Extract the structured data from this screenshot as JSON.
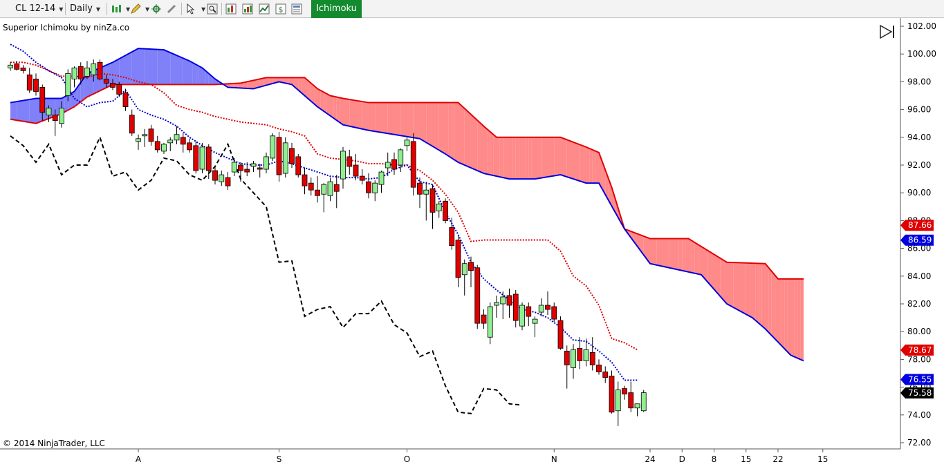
{
  "toolbar": {
    "instrument": "CL 12-14",
    "interval": "Daily",
    "indicator_tab": "Ichimoku",
    "icons": [
      "bar-style-icon",
      "pencil-icon",
      "crosshair-icon",
      "link-icon",
      "cursor-icon",
      "zoom-icon",
      "indicators-icon",
      "strategies-icon",
      "chart-trader-icon",
      "properties-icon"
    ]
  },
  "indicator_title": "Superior Ichimoku by ninZa.co",
  "copyright": "© 2014 NinjaTrader, LLC",
  "colors": {
    "up_candle": "#90EE90",
    "down_candle": "#E00000",
    "tenkan": "#0000CC",
    "kijun": "#E00000",
    "chikou": "#000000",
    "senkou_a": "#E00000",
    "senkou_b": "#0000E0",
    "kumo_bull": "#8080F8",
    "kumo_bear": "#FF8A8A"
  },
  "chart_data": {
    "type": "candlestick",
    "y_axis": {
      "min": 72,
      "max": 102,
      "ticks": [
        "102.00",
        "100.00",
        "98.00",
        "96.00",
        "94.00",
        "92.00",
        "90.00",
        "88.00",
        "86.00",
        "84.00",
        "82.00",
        "80.00",
        "78.00",
        "76.00",
        "74.00",
        "72.00"
      ]
    },
    "x_axis_labels": [
      {
        "label": "A",
        "index": 20
      },
      {
        "label": "S",
        "index": 42
      },
      {
        "label": "O",
        "index": 62
      },
      {
        "label": "N",
        "index": 85
      },
      {
        "label": "24",
        "index": 100
      },
      {
        "label": "D",
        "index": 105
      },
      {
        "label": "8",
        "index": 110
      },
      {
        "label": "15",
        "index": 115
      },
      {
        "label": "22",
        "index": 120
      },
      {
        "label": "15",
        "index": 127
      }
    ],
    "candles": [
      [
        99.0,
        99.4,
        98.8,
        99.2
      ],
      [
        99.3,
        99.5,
        98.8,
        98.9
      ],
      [
        99.0,
        99.2,
        98.6,
        98.8
      ],
      [
        98.5,
        99.0,
        97.2,
        97.4
      ],
      [
        98.2,
        98.6,
        97.0,
        97.3
      ],
      [
        97.6,
        97.8,
        95.2,
        95.8
      ],
      [
        95.6,
        96.3,
        95.1,
        96.1
      ],
      [
        95.6,
        96.0,
        94.1,
        95.2
      ],
      [
        95.0,
        96.6,
        94.7,
        96.1
      ],
      [
        97.0,
        98.9,
        96.6,
        98.6
      ],
      [
        98.2,
        99.1,
        97.6,
        99.0
      ],
      [
        99.1,
        99.4,
        97.8,
        98.2
      ],
      [
        98.4,
        99.5,
        98.2,
        99.0
      ],
      [
        98.5,
        99.6,
        98.0,
        99.3
      ],
      [
        99.4,
        99.6,
        98.1,
        98.2
      ],
      [
        98.2,
        98.5,
        97.6,
        97.9
      ],
      [
        97.9,
        98.2,
        97.4,
        97.6
      ],
      [
        97.8,
        98.0,
        96.9,
        97.1
      ],
      [
        97.2,
        97.5,
        95.9,
        96.2
      ],
      [
        95.6,
        96.0,
        94.1,
        94.3
      ],
      [
        93.7,
        94.2,
        93.1,
        93.9
      ],
      [
        94.1,
        94.6,
        93.3,
        94.2
      ],
      [
        94.6,
        94.9,
        93.4,
        93.7
      ],
      [
        93.7,
        94.1,
        92.9,
        93.1
      ],
      [
        93.0,
        93.6,
        92.8,
        93.5
      ],
      [
        93.6,
        94.0,
        93.0,
        93.8
      ],
      [
        93.8,
        94.8,
        93.5,
        94.2
      ],
      [
        94.0,
        94.3,
        92.9,
        93.5
      ],
      [
        93.6,
        93.9,
        92.9,
        93.1
      ],
      [
        93.4,
        93.7,
        91.4,
        91.6
      ],
      [
        91.7,
        93.6,
        91.4,
        93.3
      ],
      [
        93.3,
        93.5,
        91.0,
        91.6
      ],
      [
        91.6,
        91.9,
        90.6,
        90.9
      ],
      [
        90.8,
        91.6,
        90.5,
        91.3
      ],
      [
        91.1,
        91.5,
        90.2,
        90.5
      ],
      [
        91.5,
        92.5,
        91.2,
        92.2
      ],
      [
        92.0,
        92.2,
        90.8,
        91.6
      ],
      [
        91.7,
        92.2,
        91.2,
        91.5
      ],
      [
        91.9,
        92.3,
        91.5,
        92.1
      ],
      [
        91.8,
        92.1,
        91.1,
        91.7
      ],
      [
        91.7,
        92.9,
        91.4,
        92.6
      ],
      [
        92.5,
        94.3,
        92.3,
        94.1
      ],
      [
        94.0,
        94.4,
        90.8,
        91.3
      ],
      [
        91.4,
        94.0,
        91.1,
        93.6
      ],
      [
        93.2,
        93.6,
        91.8,
        92.1
      ],
      [
        92.6,
        92.8,
        91.1,
        91.3
      ],
      [
        91.3,
        91.8,
        89.9,
        90.5
      ],
      [
        90.7,
        91.1,
        89.8,
        90.2
      ],
      [
        90.2,
        91.2,
        89.3,
        89.8
      ],
      [
        89.9,
        90.7,
        88.6,
        90.6
      ],
      [
        89.8,
        91.1,
        89.4,
        90.8
      ],
      [
        90.6,
        91.3,
        88.9,
        90.1
      ],
      [
        91.0,
        93.3,
        90.3,
        93.0
      ],
      [
        92.6,
        93.1,
        91.3,
        91.9
      ],
      [
        92.0,
        92.8,
        90.9,
        91.2
      ],
      [
        91.2,
        91.7,
        90.6,
        90.9
      ],
      [
        90.8,
        91.4,
        89.6,
        90.0
      ],
      [
        90.0,
        90.9,
        89.4,
        90.7
      ],
      [
        90.6,
        91.6,
        90.0,
        91.5
      ],
      [
        91.8,
        92.9,
        91.2,
        92.2
      ],
      [
        92.4,
        92.9,
        91.3,
        91.7
      ],
      [
        92.0,
        93.2,
        91.5,
        93.1
      ],
      [
        93.4,
        94.0,
        93.0,
        93.8
      ],
      [
        93.7,
        94.3,
        89.8,
        90.4
      ],
      [
        90.7,
        91.1,
        88.9,
        89.9
      ],
      [
        89.9,
        90.8,
        88.0,
        90.2
      ],
      [
        90.3,
        90.6,
        87.4,
        88.6
      ],
      [
        88.7,
        89.4,
        88.2,
        89.2
      ],
      [
        89.4,
        89.6,
        87.8,
        88.0
      ],
      [
        87.5,
        88.2,
        85.9,
        86.2
      ],
      [
        86.6,
        86.9,
        83.2,
        83.9
      ],
      [
        84.1,
        85.2,
        82.6,
        84.9
      ],
      [
        85.0,
        85.4,
        83.2,
        84.4
      ],
      [
        84.6,
        84.8,
        80.2,
        80.6
      ],
      [
        81.2,
        81.6,
        80.2,
        80.6
      ],
      [
        79.6,
        82.1,
        79.1,
        81.8
      ],
      [
        81.9,
        82.6,
        81.0,
        82.1
      ],
      [
        82.0,
        82.9,
        80.9,
        82.5
      ],
      [
        82.6,
        83.1,
        81.0,
        81.9
      ],
      [
        82.7,
        83.0,
        80.3,
        80.8
      ],
      [
        80.4,
        82.1,
        80.1,
        81.9
      ],
      [
        81.8,
        82.1,
        80.4,
        81.1
      ],
      [
        80.6,
        81.1,
        79.6,
        80.9
      ],
      [
        81.4,
        82.4,
        81.1,
        81.9
      ],
      [
        81.9,
        82.9,
        81.2,
        81.6
      ],
      [
        81.8,
        82.1,
        80.7,
        80.9
      ],
      [
        80.8,
        81.1,
        78.7,
        78.8
      ],
      [
        78.6,
        79.0,
        75.9,
        77.6
      ],
      [
        77.4,
        79.1,
        76.6,
        78.7
      ],
      [
        78.8,
        79.6,
        77.3,
        77.9
      ],
      [
        77.9,
        79.5,
        77.5,
        78.7
      ],
      [
        78.5,
        79.6,
        77.2,
        77.6
      ],
      [
        77.6,
        78.0,
        76.9,
        77.1
      ],
      [
        77.1,
        77.5,
        76.3,
        76.7
      ],
      [
        76.8,
        77.2,
        74.1,
        74.2
      ],
      [
        74.3,
        76.4,
        73.2,
        75.8
      ],
      [
        75.9,
        76.1,
        75.1,
        75.5
      ],
      [
        75.6,
        76.4,
        74.2,
        74.5
      ],
      [
        74.5,
        74.8,
        73.9,
        74.8
      ],
      [
        74.3,
        75.8,
        74.2,
        75.6
      ]
    ],
    "tenkan_sen": [
      [
        0,
        100.7
      ],
      [
        2,
        100.2
      ],
      [
        4,
        99.4
      ],
      [
        6,
        98.8
      ],
      [
        8,
        98.3
      ],
      [
        10,
        96.8
      ],
      [
        12,
        96.2
      ],
      [
        14,
        96.5
      ],
      [
        16,
        96.6
      ],
      [
        18,
        97.4
      ],
      [
        20,
        96.0
      ],
      [
        22,
        95.6
      ],
      [
        24,
        95.3
      ],
      [
        26,
        94.8
      ],
      [
        28,
        94.0
      ],
      [
        30,
        93.4
      ],
      [
        32,
        92.9
      ],
      [
        34,
        92.5
      ],
      [
        36,
        92.1
      ],
      [
        38,
        92.0
      ],
      [
        40,
        92.0
      ],
      [
        42,
        92.3
      ],
      [
        44,
        92.1
      ],
      [
        46,
        91.8
      ],
      [
        48,
        91.5
      ],
      [
        50,
        91.2
      ],
      [
        52,
        91.1
      ],
      [
        54,
        91.1
      ],
      [
        56,
        91.0
      ],
      [
        58,
        91.1
      ],
      [
        60,
        91.7
      ],
      [
        62,
        92.0
      ],
      [
        64,
        90.8
      ],
      [
        66,
        90.6
      ],
      [
        68,
        88.6
      ],
      [
        70,
        87.0
      ],
      [
        72,
        85.0
      ],
      [
        74,
        83.8
      ],
      [
        76,
        83.0
      ],
      [
        78,
        82.3
      ],
      [
        80,
        81.6
      ],
      [
        82,
        81.4
      ],
      [
        84,
        81.0
      ],
      [
        86,
        80.3
      ],
      [
        88,
        79.4
      ],
      [
        90,
        79.3
      ],
      [
        92,
        78.6
      ],
      [
        94,
        77.8
      ],
      [
        96,
        76.5
      ],
      [
        98,
        76.5
      ]
    ],
    "kijun_sen": [
      [
        0,
        99.4
      ],
      [
        2,
        99.4
      ],
      [
        4,
        99.2
      ],
      [
        6,
        98.8
      ],
      [
        8,
        98.4
      ],
      [
        10,
        98.4
      ],
      [
        12,
        98.3
      ],
      [
        14,
        98.6
      ],
      [
        16,
        98.5
      ],
      [
        18,
        98.3
      ],
      [
        20,
        98.0
      ],
      [
        22,
        97.8
      ],
      [
        24,
        97.2
      ],
      [
        26,
        96.3
      ],
      [
        28,
        96.0
      ],
      [
        30,
        95.8
      ],
      [
        32,
        95.5
      ],
      [
        34,
        95.3
      ],
      [
        36,
        95.1
      ],
      [
        38,
        95.0
      ],
      [
        40,
        94.9
      ],
      [
        42,
        94.6
      ],
      [
        44,
        94.4
      ],
      [
        46,
        94.1
      ],
      [
        48,
        92.8
      ],
      [
        50,
        92.5
      ],
      [
        52,
        92.4
      ],
      [
        54,
        92.3
      ],
      [
        56,
        92.1
      ],
      [
        58,
        92.1
      ],
      [
        60,
        92.0
      ],
      [
        62,
        92.0
      ],
      [
        64,
        91.6
      ],
      [
        66,
        90.9
      ],
      [
        68,
        89.9
      ],
      [
        70,
        88.6
      ],
      [
        72,
        86.5
      ],
      [
        74,
        86.6
      ],
      [
        76,
        86.6
      ],
      [
        78,
        86.6
      ],
      [
        80,
        86.6
      ],
      [
        82,
        86.6
      ],
      [
        84,
        86.6
      ],
      [
        86,
        85.8
      ],
      [
        88,
        84.0
      ],
      [
        90,
        83.3
      ],
      [
        92,
        81.9
      ],
      [
        94,
        79.5
      ],
      [
        96,
        79.2
      ],
      [
        98,
        78.7
      ]
    ],
    "chikou_span": [
      [
        0,
        94.1
      ],
      [
        2,
        93.4
      ],
      [
        4,
        92.2
      ],
      [
        6,
        93.5
      ],
      [
        8,
        91.3
      ],
      [
        10,
        92.0
      ],
      [
        12,
        92.0
      ],
      [
        14,
        94.0
      ],
      [
        16,
        91.2
      ],
      [
        18,
        91.5
      ],
      [
        20,
        90.2
      ],
      [
        22,
        90.9
      ],
      [
        24,
        92.5
      ],
      [
        26,
        92.3
      ],
      [
        28,
        91.3
      ],
      [
        30,
        90.9
      ],
      [
        32,
        91.9
      ],
      [
        34,
        93.5
      ],
      [
        36,
        91.0
      ],
      [
        38,
        90.0
      ],
      [
        40,
        89.0
      ],
      [
        42,
        85.0
      ],
      [
        44,
        85.1
      ],
      [
        46,
        81.1
      ],
      [
        48,
        81.6
      ],
      [
        50,
        81.8
      ],
      [
        52,
        80.3
      ],
      [
        54,
        81.3
      ],
      [
        56,
        81.3
      ],
      [
        58,
        82.2
      ],
      [
        60,
        80.5
      ],
      [
        62,
        79.9
      ],
      [
        64,
        78.2
      ],
      [
        66,
        78.6
      ],
      [
        68,
        76.1
      ],
      [
        70,
        74.2
      ],
      [
        72,
        74.1
      ],
      [
        74,
        75.9
      ],
      [
        76,
        75.8
      ],
      [
        78,
        74.8
      ],
      [
        80,
        74.7
      ]
    ],
    "senkou_span_a": [
      [
        0,
        95.3
      ],
      [
        4,
        95.0
      ],
      [
        8,
        95.7
      ],
      [
        10,
        96.2
      ],
      [
        12,
        96.9
      ],
      [
        16,
        97.8
      ],
      [
        20,
        97.8
      ],
      [
        24,
        97.8
      ],
      [
        28,
        97.8
      ],
      [
        32,
        97.8
      ],
      [
        36,
        97.9
      ],
      [
        40,
        98.3
      ],
      [
        44,
        98.3
      ],
      [
        46,
        98.3
      ],
      [
        48,
        97.5
      ],
      [
        50,
        97.0
      ],
      [
        52,
        96.8
      ],
      [
        56,
        96.5
      ],
      [
        60,
        96.5
      ],
      [
        64,
        96.5
      ],
      [
        70,
        96.5
      ],
      [
        74,
        94.8
      ],
      [
        76,
        94.0
      ],
      [
        80,
        94.0
      ],
      [
        86,
        94.0
      ],
      [
        90,
        93.3
      ],
      [
        92,
        92.9
      ],
      [
        94,
        90.4
      ],
      [
        96,
        87.4
      ],
      [
        100,
        86.7
      ],
      [
        106,
        86.7
      ],
      [
        112,
        85.0
      ],
      [
        118,
        84.9
      ],
      [
        120,
        83.8
      ],
      [
        124,
        83.8
      ]
    ],
    "senkou_span_b": [
      [
        0,
        96.5
      ],
      [
        4,
        96.8
      ],
      [
        8,
        96.8
      ],
      [
        10,
        97.3
      ],
      [
        12,
        98.6
      ],
      [
        16,
        99.4
      ],
      [
        20,
        100.4
      ],
      [
        24,
        100.3
      ],
      [
        28,
        99.5
      ],
      [
        30,
        99.0
      ],
      [
        32,
        98.2
      ],
      [
        34,
        97.6
      ],
      [
        38,
        97.5
      ],
      [
        42,
        98.0
      ],
      [
        44,
        97.8
      ],
      [
        46,
        97.0
      ],
      [
        48,
        96.2
      ],
      [
        52,
        94.9
      ],
      [
        56,
        94.5
      ],
      [
        60,
        94.2
      ],
      [
        64,
        93.9
      ],
      [
        68,
        92.8
      ],
      [
        70,
        92.2
      ],
      [
        74,
        91.4
      ],
      [
        78,
        91.0
      ],
      [
        82,
        91.0
      ],
      [
        86,
        91.3
      ],
      [
        90,
        90.7
      ],
      [
        92,
        90.7
      ],
      [
        96,
        87.4
      ],
      [
        100,
        84.9
      ],
      [
        104,
        84.5
      ],
      [
        108,
        84.1
      ],
      [
        112,
        82.0
      ],
      [
        116,
        81.0
      ],
      [
        118,
        80.2
      ],
      [
        122,
        78.3
      ],
      [
        124,
        77.9
      ]
    ],
    "price_labels": [
      {
        "text": "87.66",
        "value": 87.66,
        "color": "#E00000",
        "text_color": "#ffffff"
      },
      {
        "text": "86.59",
        "value": 86.59,
        "color": "#0000E0",
        "text_color": "#ffffff"
      },
      {
        "text": "78.67",
        "value": 78.67,
        "color": "#E00000",
        "text_color": "#ffffff"
      },
      {
        "text": "76.55",
        "value": 76.55,
        "color": "#0000E0",
        "text_color": "#ffffff"
      },
      {
        "text": "75.58",
        "value": 75.58,
        "color": "#000000",
        "text_color": "#ffffff"
      }
    ]
  }
}
